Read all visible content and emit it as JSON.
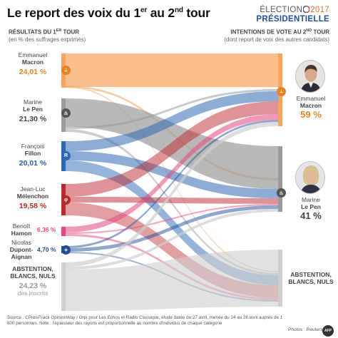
{
  "header": {
    "title_part1": "Le report des voix du 1",
    "title_sup1": "er",
    "title_part2": " au 2",
    "title_sup2": "nd",
    "title_part3": " tour",
    "brand_word": "ÉLECTION",
    "brand_year": "2017",
    "brand_line2": "PRÉSIDENTIELLE"
  },
  "left_header": {
    "title_part1": "RÉSULTATS DU 1",
    "title_sup": "ER",
    "title_part2": " TOUR",
    "subtitle": "(en % des suffrages exprimés)"
  },
  "right_header": {
    "title_part1": "INTENTIONS DE VOTE AU 2",
    "title_sup": "ND",
    "title_part2": " TOUR",
    "subtitle": "(dont report de voix des autres candidats)"
  },
  "first_round": [
    {
      "id": "macron",
      "first_name": "Emmanuel",
      "last_name": "Macron",
      "value_label": "24,01 %",
      "value": 24.01,
      "color": "#f7a35a",
      "text_color": "#e8821e"
    },
    {
      "id": "lepen",
      "first_name": "Marine",
      "last_name": "Le Pen",
      "value_label": "21,30 %",
      "value": 21.3,
      "color": "#9b9b9b",
      "text_color": "#444444"
    },
    {
      "id": "fillon",
      "first_name": "François",
      "last_name": "Fillon",
      "value_label": "20,01 %",
      "value": 20.01,
      "color": "#2b69b8",
      "text_color": "#2b5ea8"
    },
    {
      "id": "melenchon",
      "first_name": "Jean-Luc",
      "last_name": "Mélenchon",
      "value_label": "19,58 %",
      "value": 19.58,
      "color": "#c0282f",
      "text_color": "#c0282f"
    },
    {
      "id": "hamon",
      "first_name": "Benoît",
      "last_name": "Hamon",
      "value_label": "6,36 %",
      "value": 6.36,
      "color": "#e8457f",
      "text_color": "#e8457f"
    },
    {
      "id": "dupont",
      "first_name": "Nicolas",
      "last_name": "Dupont-Aignan",
      "last_name_line1": "Dupont-",
      "last_name_line2": "Aignan",
      "value_label": "4,70 %",
      "value": 4.7,
      "color": "#1f4f9a",
      "text_color": "#1f4f9a"
    },
    {
      "id": "abstention",
      "line1": "ABSTENTION,",
      "line2": "BLANCS, NULS",
      "value_label": "24,23 %",
      "value": 24.23,
      "note": "des inscrits",
      "color": "#cfcfcf",
      "text_color": "#999999"
    }
  ],
  "second_round": [
    {
      "id": "macron2",
      "first_name": "Emmanuel",
      "last_name": "Macron",
      "value_label": "59 %",
      "value": 59,
      "text_color": "#e8821e"
    },
    {
      "id": "lepen2",
      "first_name": "Marine",
      "last_name": "Le Pen",
      "value_label": "41 %",
      "value": 41,
      "text_color": "#444444"
    },
    {
      "id": "abstention2",
      "line1": "ABSTENTION,",
      "line2": "BLANCS, NULS",
      "text_color": "#444444"
    }
  ],
  "footer": {
    "source": "Source : CPrésiTrack OpinionWay / Orpi pour Les Echos et Radio Classique, étude datée du 27 avril, menée du 24 au 26 avril auprès de 1 800 personnes. Note : l'épaisseur des rayons est proportionnelle au nombre d'individus de chaque catégorie",
    "credit": "Photos : Reuters",
    "agency": "AFP"
  },
  "icons": {
    "macron_badge": "en-marche-icon",
    "lepen_badge": "flame-icon",
    "fillon_badge": "lr-logo-icon",
    "melenchon_badge": "phi-icon",
    "dupont_badge": "dlf-logo-icon"
  }
}
